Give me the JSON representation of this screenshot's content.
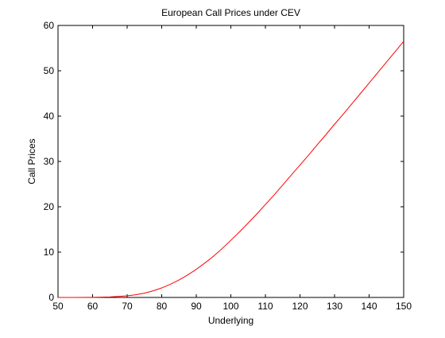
{
  "chart_data": {
    "type": "line",
    "title": "European Call Prices under CEV",
    "xlabel": "Underlying",
    "ylabel": "Call Prices",
    "xlim": [
      50,
      150
    ],
    "ylim": [
      0,
      60
    ],
    "xticks": [
      50,
      60,
      70,
      80,
      90,
      100,
      110,
      120,
      130,
      140,
      150
    ],
    "yticks": [
      0,
      10,
      20,
      30,
      40,
      50,
      60
    ],
    "grid": false,
    "legend": "none",
    "series": [
      {
        "color": "#ff0000",
        "x": [
          50,
          55,
          60,
          65,
          70,
          72.5,
          75,
          77.5,
          80,
          82.5,
          85,
          87.5,
          90,
          92.5,
          95,
          97.5,
          100,
          102.5,
          105,
          107.5,
          110,
          112.5,
          115,
          117.5,
          120,
          122.5,
          125,
          127.5,
          130,
          132.5,
          135,
          137.5,
          140,
          142.5,
          145,
          147.5,
          150
        ],
        "y": [
          0.0,
          0.0,
          0.02,
          0.1,
          0.35,
          0.6,
          0.95,
          1.45,
          2.1,
          2.9,
          3.85,
          4.95,
          6.2,
          7.6,
          9.1,
          10.8,
          12.6,
          14.45,
          16.4,
          18.4,
          20.5,
          22.6,
          24.8,
          27.0,
          29.2,
          31.4,
          33.7,
          35.9,
          38.2,
          40.4,
          42.7,
          45.0,
          47.3,
          49.6,
          51.9,
          54.2,
          56.5
        ]
      }
    ]
  }
}
